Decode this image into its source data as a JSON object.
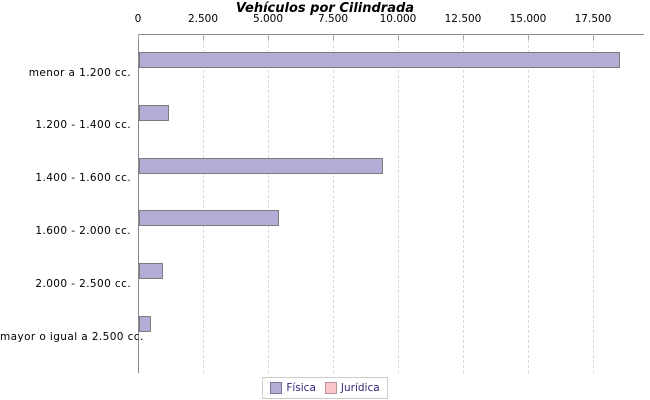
{
  "title": "Vehículos por Cilindrada",
  "legend": {
    "items": [
      {
        "label": "Física",
        "color": "#b4abd6",
        "border": "#77779b"
      },
      {
        "label": "Jurídica",
        "color": "#f9c7cb",
        "border": "#bb9199"
      }
    ]
  },
  "chart_data": {
    "type": "bar",
    "orientation": "horizontal",
    "title": "Vehículos por Cilindrada",
    "categories": [
      "menor a 1.200 cc.",
      "1.200 - 1.400 cc.",
      "1.400 - 1.600 cc.",
      "1.600 - 2.000 cc.",
      "2.000 - 2.500 cc.",
      "mayor o igual a 2.500 cc."
    ],
    "series": [
      {
        "name": "Física",
        "values": [
          18430,
          1080,
          9320,
          5320,
          860,
          390
        ],
        "color": "#b4abd6"
      },
      {
        "name": "Jurídica",
        "values": [
          0,
          0,
          0,
          0,
          0,
          0
        ],
        "color": "#f9c7cb"
      }
    ],
    "x_axis": {
      "tick_labels": [
        "0",
        "2.500",
        "5.000",
        "7.500",
        "10.000",
        "12.500",
        "15.000",
        "17.500"
      ],
      "tick_values": [
        0,
        2500,
        5000,
        7500,
        10000,
        12500,
        15000,
        17500
      ],
      "xlim": [
        0,
        19450
      ],
      "grid": "dashed"
    },
    "ylabel": "",
    "xlabel": "",
    "legend_position": "bottom"
  },
  "style": {
    "bar_border": "#7c7c7c",
    "axis_color": "#8a8a8a",
    "grid_color": "#d9d9d9",
    "legend_text_color": "#35297d"
  }
}
